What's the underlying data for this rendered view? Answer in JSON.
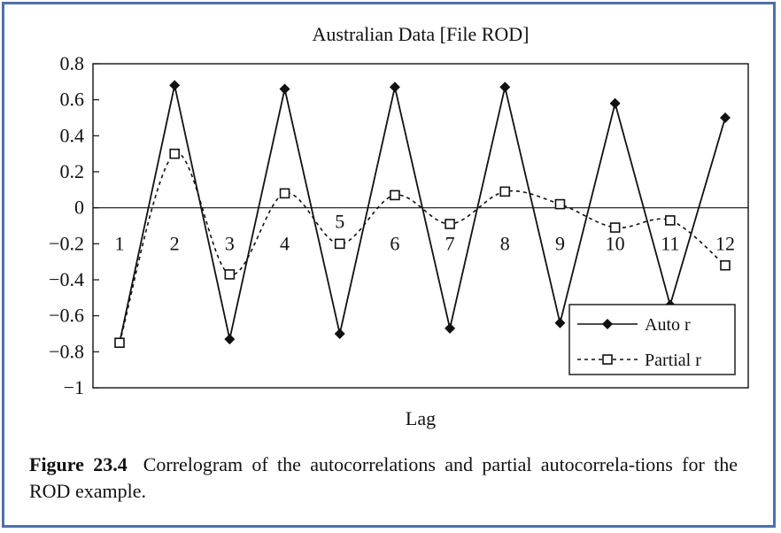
{
  "chart_data": {
    "type": "line",
    "title": "Australian Data [File ROD]",
    "xlabel": "Lag",
    "ylabel": "",
    "x": [
      1,
      2,
      3,
      4,
      5,
      6,
      7,
      8,
      9,
      10,
      11,
      12
    ],
    "ylim": [
      -1,
      0.8
    ],
    "yticks": [
      0.8,
      0.6,
      0.4,
      0.2,
      0,
      -0.2,
      -0.4,
      -0.6,
      -0.8,
      -1
    ],
    "ytick_labels": [
      "0.8",
      "0.6",
      "0.4",
      "0.2",
      "0",
      "−0.2",
      "−0.4",
      "−0.6",
      "−0.8",
      "−1"
    ],
    "legend_position": "bottom-right",
    "grid": false,
    "series": [
      {
        "name": "Auto r",
        "marker": "filled-diamond",
        "line": "solid",
        "values": [
          -0.75,
          0.68,
          -0.73,
          0.66,
          -0.7,
          0.67,
          -0.67,
          0.67,
          -0.64,
          0.58,
          -0.54,
          0.5
        ]
      },
      {
        "name": "Partial r",
        "marker": "open-square",
        "line": "dashed",
        "values": [
          -0.75,
          0.3,
          -0.37,
          0.08,
          -0.2,
          0.07,
          -0.09,
          0.09,
          0.02,
          -0.11,
          -0.07,
          -0.32
        ]
      }
    ]
  },
  "caption": {
    "label": "Figure 23.4",
    "text": "Correlogram of the autocorrelations and partial autocorrela-tions for the ROD example."
  },
  "colors": {
    "frame_border": "#4f6fa8",
    "ink": "#111111"
  }
}
